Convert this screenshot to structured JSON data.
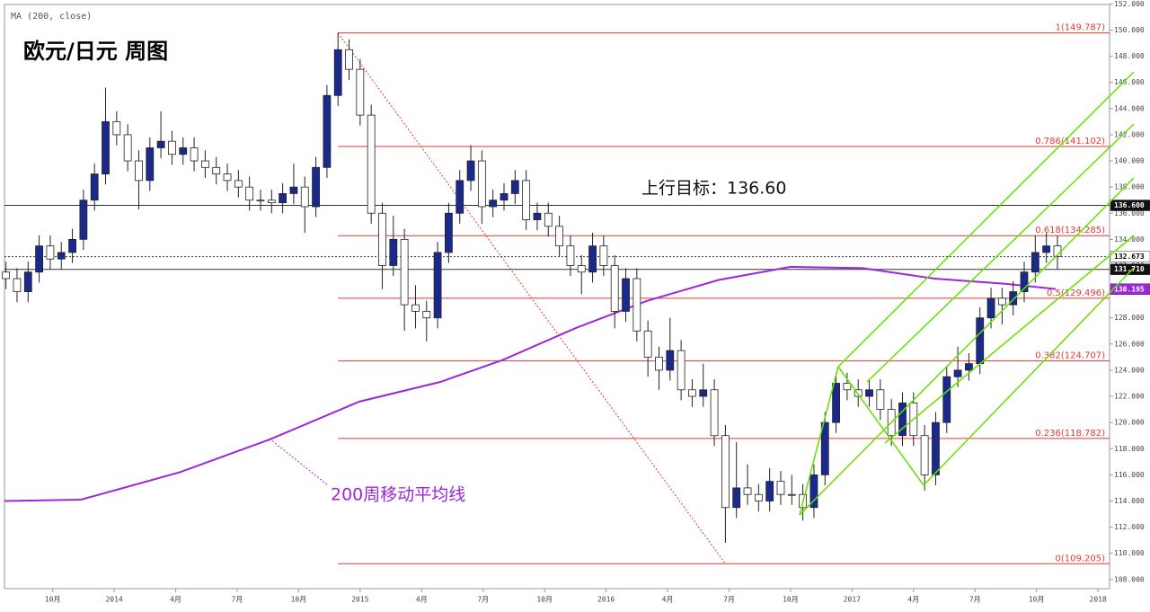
{
  "chart_data": {
    "type": "candlestick",
    "title": "欧元/日元 周图",
    "indicator_label": "MA (200, close)",
    "target_annotation": "上行目标：136.60",
    "ma_annotation": "200周移动平均线",
    "up_color": "#1a2a8c",
    "down_color": "#ffffff",
    "outline_color": "#222222",
    "xlim": [
      2013.554,
      2018.047
    ],
    "ylim": [
      107.3,
      152.3
    ],
    "xticks": [
      {
        "value": 2013.75,
        "label": "10月"
      },
      {
        "value": 2014,
        "label": "2014"
      },
      {
        "value": 2014.25,
        "label": "4月"
      },
      {
        "value": 2014.5,
        "label": "7月"
      },
      {
        "value": 2014.75,
        "label": "10月"
      },
      {
        "value": 2015,
        "label": "2015"
      },
      {
        "value": 2015.25,
        "label": "4月"
      },
      {
        "value": 2015.5,
        "label": "7月"
      },
      {
        "value": 2015.75,
        "label": "10月"
      },
      {
        "value": 2016,
        "label": "2016"
      },
      {
        "value": 2016.25,
        "label": "4月"
      },
      {
        "value": 2016.5,
        "label": "7月"
      },
      {
        "value": 2016.75,
        "label": "10月"
      },
      {
        "value": 2017,
        "label": "2017"
      },
      {
        "value": 2017.25,
        "label": "4月"
      },
      {
        "value": 2017.5,
        "label": "7月"
      },
      {
        "value": 2017.75,
        "label": "10月"
      },
      {
        "value": 2018,
        "label": "2018"
      }
    ],
    "yticks": [
      {
        "value": 108,
        "label": "108.000"
      },
      {
        "value": 110,
        "label": "110.000"
      },
      {
        "value": 112,
        "label": "112.000"
      },
      {
        "value": 114,
        "label": "114.000"
      },
      {
        "value": 116,
        "label": "116.000"
      },
      {
        "value": 118,
        "label": "118.000"
      },
      {
        "value": 120,
        "label": "120.000"
      },
      {
        "value": 122,
        "label": "122.000"
      },
      {
        "value": 124,
        "label": "124.000"
      },
      {
        "value": 126,
        "label": "126.000"
      },
      {
        "value": 128,
        "label": "128.000"
      },
      {
        "value": 130,
        "label": "130.000"
      },
      {
        "value": 132,
        "label": "132.000"
      },
      {
        "value": 134,
        "label": "134.000"
      },
      {
        "value": 136,
        "label": "136.000"
      },
      {
        "value": 138,
        "label": "138.000"
      },
      {
        "value": 140,
        "label": "140.000"
      },
      {
        "value": 142,
        "label": "142.000"
      },
      {
        "value": 144,
        "label": "144.000"
      },
      {
        "value": 146,
        "label": "146.000"
      },
      {
        "value": 148,
        "label": "148.000"
      },
      {
        "value": 150,
        "label": "150.000"
      },
      {
        "value": 152,
        "label": "152.000"
      }
    ],
    "price_tags": [
      {
        "value": 136.6,
        "label": "136.600",
        "color": "#111111"
      },
      {
        "value": 132.673,
        "label": "132.673",
        "color": "#ffffff"
      },
      {
        "value": 131.71,
        "label": "131.710",
        "color": "#111111"
      },
      {
        "value": 130.195,
        "label": "130.195",
        "color": "#9c27d9"
      }
    ],
    "fib_color": "#e53935",
    "fib_levels": [
      {
        "value": 149.787,
        "label": "1(149.787)"
      },
      {
        "value": 141.102,
        "label": "0.786(141.102)"
      },
      {
        "value": 134.285,
        "label": "0.618(134.285)"
      },
      {
        "value": 129.496,
        "label": "0.5(129.496)"
      },
      {
        "value": 124.707,
        "label": "0.382(124.707)"
      },
      {
        "value": 118.782,
        "label": "0.236(118.782)"
      },
      {
        "value": 109.205,
        "label": "0(109.205)"
      }
    ],
    "x": [
      2013.56,
      2013.605,
      2013.65,
      2013.695,
      2013.74,
      2013.785,
      2013.83,
      2013.875,
      2013.92,
      2013.965,
      2014.01,
      2014.055,
      2014.1,
      2014.145,
      2014.19,
      2014.235,
      2014.28,
      2014.325,
      2014.37,
      2014.415,
      2014.46,
      2014.505,
      2014.55,
      2014.595,
      2014.64,
      2014.685,
      2014.73,
      2014.775,
      2014.82,
      2014.865,
      2014.91,
      2014.955,
      2015.0,
      2015.045,
      2015.09,
      2015.135,
      2015.18,
      2015.225,
      2015.27,
      2015.315,
      2015.36,
      2015.405,
      2015.45,
      2015.495,
      2015.54,
      2015.585,
      2015.63,
      2015.675,
      2015.72,
      2015.765,
      2015.81,
      2015.855,
      2015.9,
      2015.945,
      2015.99,
      2016.035,
      2016.08,
      2016.125,
      2016.17,
      2016.215,
      2016.26,
      2016.305,
      2016.35,
      2016.395,
      2016.44,
      2016.485,
      2016.53,
      2016.575,
      2016.62,
      2016.665,
      2016.71,
      2016.755,
      2016.8,
      2016.845,
      2016.89,
      2016.935,
      2016.98,
      2017.025,
      2017.07,
      2017.115,
      2017.16,
      2017.205,
      2017.25,
      2017.295,
      2017.34,
      2017.385,
      2017.43,
      2017.475,
      2017.52,
      2017.565,
      2017.61,
      2017.655,
      2017.7,
      2017.745,
      2017.79,
      2017.835
    ],
    "open": [
      131.5,
      131,
      130,
      131.5,
      133.5,
      132.5,
      133,
      134,
      137,
      139,
      143,
      142,
      140,
      138.5,
      141,
      141.5,
      140.5,
      141,
      140,
      139.5,
      139,
      138.5,
      138,
      137,
      137,
      136.8,
      137.5,
      138,
      136.5,
      139.5,
      145,
      148.5,
      147,
      143.5,
      136,
      132,
      134,
      129,
      128.5,
      128,
      133,
      136,
      138.5,
      140,
      136.5,
      137,
      137.5,
      138.5,
      135.5,
      136,
      135,
      133.5,
      132,
      131.5,
      133.5,
      132,
      128.5,
      131,
      127,
      125,
      124,
      125.5,
      122.5,
      122,
      122.5,
      119,
      113.5,
      115,
      114.5,
      114,
      115.5,
      114.5,
      114.5,
      113.5,
      116,
      120,
      123,
      122.5,
      122,
      122.5,
      121,
      119,
      121.5,
      119,
      116,
      120,
      123.5,
      124,
      124.5,
      128,
      129.5,
      129,
      130,
      131.5,
      133,
      133.5
    ],
    "high": [
      132.3,
      131.8,
      132.3,
      134.3,
      134.3,
      133.8,
      134.8,
      137.8,
      139.8,
      145.6,
      143.8,
      142.8,
      140.8,
      141.8,
      143.8,
      142.3,
      141.8,
      141.8,
      140.8,
      140.3,
      139.8,
      139.3,
      138.8,
      137.8,
      137.8,
      138.3,
      139.8,
      138.8,
      140.3,
      145.8,
      149.8,
      149.3,
      147.8,
      144.3,
      136.8,
      135.8,
      134.8,
      130.5,
      129.3,
      133.8,
      136.8,
      139.3,
      141.2,
      140.8,
      137.8,
      138.3,
      139.3,
      139.3,
      136.8,
      136.8,
      135.8,
      134.3,
      132.8,
      134.5,
      134.3,
      132.8,
      131.8,
      131.8,
      127.8,
      125.8,
      128,
      126.3,
      123.3,
      124.5,
      123.3,
      119.8,
      118.5,
      116.8,
      115.3,
      116.5,
      116.3,
      116,
      115.3,
      116.8,
      120.8,
      123.8,
      123.8,
      123.3,
      123.3,
      123.3,
      121.8,
      122.3,
      122.3,
      119.8,
      120.8,
      124.3,
      125.8,
      125.3,
      128.8,
      130.3,
      130.3,
      130.8,
      132.3,
      134.3,
      134.5,
      134.3
    ],
    "low": [
      130.2,
      129.2,
      129.2,
      130.7,
      131.7,
      131.7,
      132.2,
      133.2,
      136.2,
      138.2,
      141.2,
      139.2,
      136.3,
      137.7,
      140.2,
      139.7,
      139.7,
      139.2,
      138.7,
      138.2,
      137.7,
      137.2,
      136.2,
      136.2,
      136,
      136,
      136.7,
      134.5,
      135.7,
      138.7,
      144.2,
      146.2,
      142.7,
      135.2,
      130.2,
      131.2,
      127,
      127.2,
      126.2,
      127.2,
      132.2,
      135.2,
      137.7,
      135.2,
      135.7,
      136.2,
      136.7,
      134.7,
      134.7,
      134.2,
      132.7,
      131.2,
      129.8,
      130.7,
      131.2,
      127.2,
      127.7,
      126.2,
      123.5,
      122.5,
      123.2,
      121.7,
      121.2,
      121.2,
      118.2,
      110.8,
      112.7,
      113.7,
      113.2,
      113.2,
      113.7,
      113.7,
      112.5,
      112.7,
      115.2,
      119.2,
      121.7,
      121.2,
      121.2,
      120.2,
      118.2,
      118.2,
      118.2,
      114.8,
      115.2,
      119.2,
      122.7,
      123.2,
      123.7,
      127.2,
      127.5,
      128.2,
      129.2,
      130.7,
      132.2,
      131.7
    ],
    "close": [
      131,
      130,
      131.5,
      133.5,
      132.5,
      133,
      134,
      137,
      139,
      143,
      142,
      140,
      138.5,
      141,
      141.5,
      140.5,
      141,
      140,
      139.5,
      139,
      138.5,
      138,
      137,
      137,
      136.8,
      137.5,
      138,
      136.5,
      139.5,
      145,
      148.5,
      147,
      143.5,
      136,
      132,
      134,
      129,
      128.5,
      128,
      133,
      136,
      138.5,
      140,
      136.5,
      137,
      137.5,
      138.5,
      135.5,
      136,
      135,
      133.5,
      132,
      131.5,
      133.5,
      132,
      128.5,
      131,
      127,
      125,
      124,
      125.5,
      122.5,
      122,
      122.5,
      119,
      113.5,
      115,
      114.5,
      114,
      115.5,
      114.5,
      114.5,
      113.5,
      116,
      120,
      123,
      122.5,
      122,
      122.5,
      121,
      119,
      121.5,
      119,
      116,
      120,
      123.5,
      124,
      124.5,
      128,
      129.5,
      129,
      130,
      131.5,
      133,
      133.5,
      132.7
    ],
    "ma": {
      "color": "#9c27d9",
      "x": [
        2013.554,
        2013.865,
        2014.267,
        2014.632,
        2014.997,
        2015.326,
        2015.582,
        2015.874,
        2016.166,
        2016.458,
        2016.751,
        2017.043,
        2017.335,
        2017.627,
        2017.828
      ],
      "values": [
        114,
        114.1,
        116.2,
        118.7,
        121.6,
        123.1,
        124.8,
        127.2,
        129.3,
        130.9,
        131.9,
        131.8,
        131,
        130.6,
        130.2
      ]
    }
  }
}
